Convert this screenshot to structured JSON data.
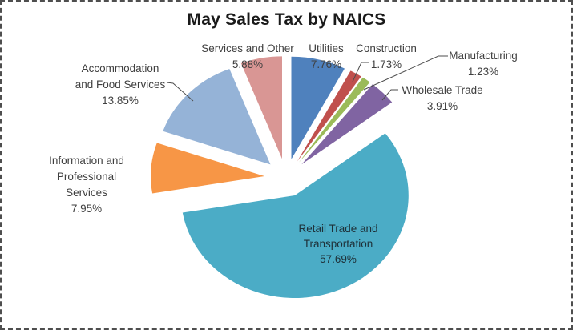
{
  "chart_data": {
    "type": "pie",
    "title": "May Sales Tax by NAICS",
    "exploded": true,
    "start_angle_deg": -90,
    "direction": "clockwise",
    "value_unit": "percent",
    "slices": [
      {
        "name": "Utilities",
        "value": 7.76,
        "pct_label": "7.76%",
        "color": "#4F81BD"
      },
      {
        "name": "Construction",
        "value": 1.73,
        "pct_label": "1.73%",
        "color": "#C0504D"
      },
      {
        "name": "Manufacturing",
        "value": 1.23,
        "pct_label": "1.23%",
        "color": "#9BBB59"
      },
      {
        "name": "Wholesale Trade",
        "value": 3.91,
        "pct_label": "3.91%",
        "color": "#8064A2"
      },
      {
        "name": "Retail Trade and Transportation",
        "value": 57.69,
        "pct_label": "57.69%",
        "color": "#4BACC6"
      },
      {
        "name": "Information and Professional Services",
        "value": 7.95,
        "pct_label": "7.95%",
        "color": "#F79646"
      },
      {
        "name": "Accommodation and Food Services",
        "value": 13.85,
        "pct_label": "13.85%",
        "color": "#95B3D7"
      },
      {
        "name": "Services and Other",
        "value": 5.88,
        "pct_label": "5.88%",
        "color": "#D99694"
      }
    ],
    "colors": {
      "title_text": "#1a1a1a",
      "label_text": "#3f3f3f",
      "inside_label_text": "#1e3038",
      "leader_line": "#4d4d4d",
      "background": "#ffffff",
      "border": "#4e4e4e"
    }
  }
}
